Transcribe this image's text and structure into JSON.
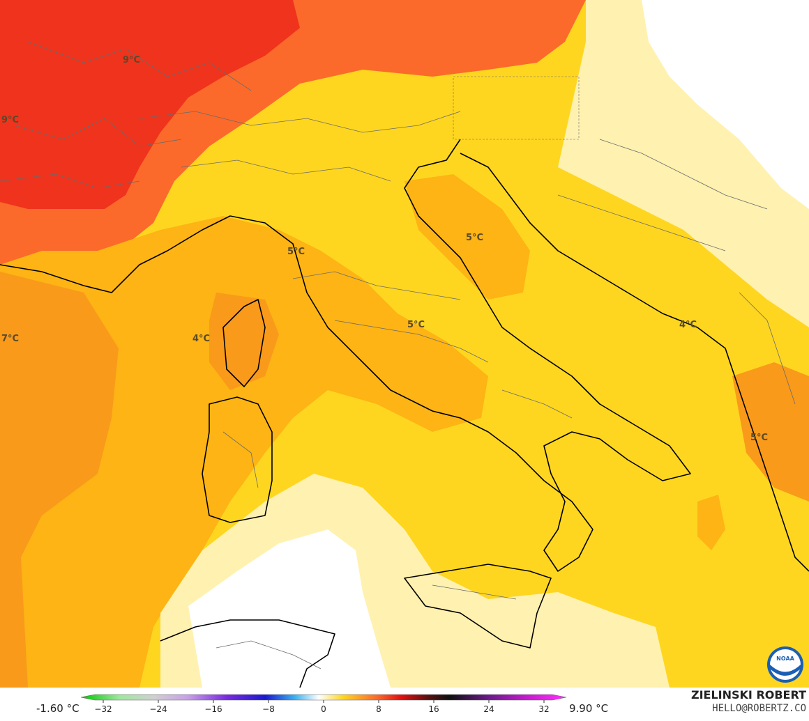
{
  "map": {
    "labels": [
      {
        "id": "temp-label-alps",
        "text": "9°C"
      },
      {
        "id": "temp-label-westalps",
        "text": "9°C"
      },
      {
        "id": "temp-label-west",
        "text": "7°C"
      },
      {
        "id": "temp-label-corsica",
        "text": "4°C"
      },
      {
        "id": "temp-label-tuscany",
        "text": "5°C"
      },
      {
        "id": "temp-label-adriatic",
        "text": "5°C"
      },
      {
        "id": "temp-label-central",
        "text": "5°C"
      },
      {
        "id": "temp-label-montenegro",
        "text": "4°C"
      },
      {
        "id": "temp-label-greece",
        "text": "5°C"
      }
    ],
    "logo_text": "NOAA"
  },
  "colorbar": {
    "min_label": "-1.60 °C",
    "max_label": "9.90 °C",
    "ticks": [
      "−32",
      "−24",
      "−16",
      "−8",
      "0",
      "8",
      "16",
      "24",
      "32"
    ],
    "tick_values": [
      -32,
      -24,
      -16,
      -8,
      0,
      8,
      16,
      24,
      32
    ],
    "range": [
      -32,
      34
    ]
  },
  "credit": {
    "name": "ZIELINSKI ROBERT",
    "email": "HELLO@ROBERTZ.CO"
  },
  "colors": {
    "very_warm": "#f0331d",
    "warm": "#fb6a2a",
    "orange": "#f99a1a",
    "amber": "#fdb414",
    "yellow": "#ffd61f",
    "pale_yellow": "#fff1b0",
    "white": "#ffffff",
    "coast": "#000000",
    "border": "#6a6a6a"
  }
}
